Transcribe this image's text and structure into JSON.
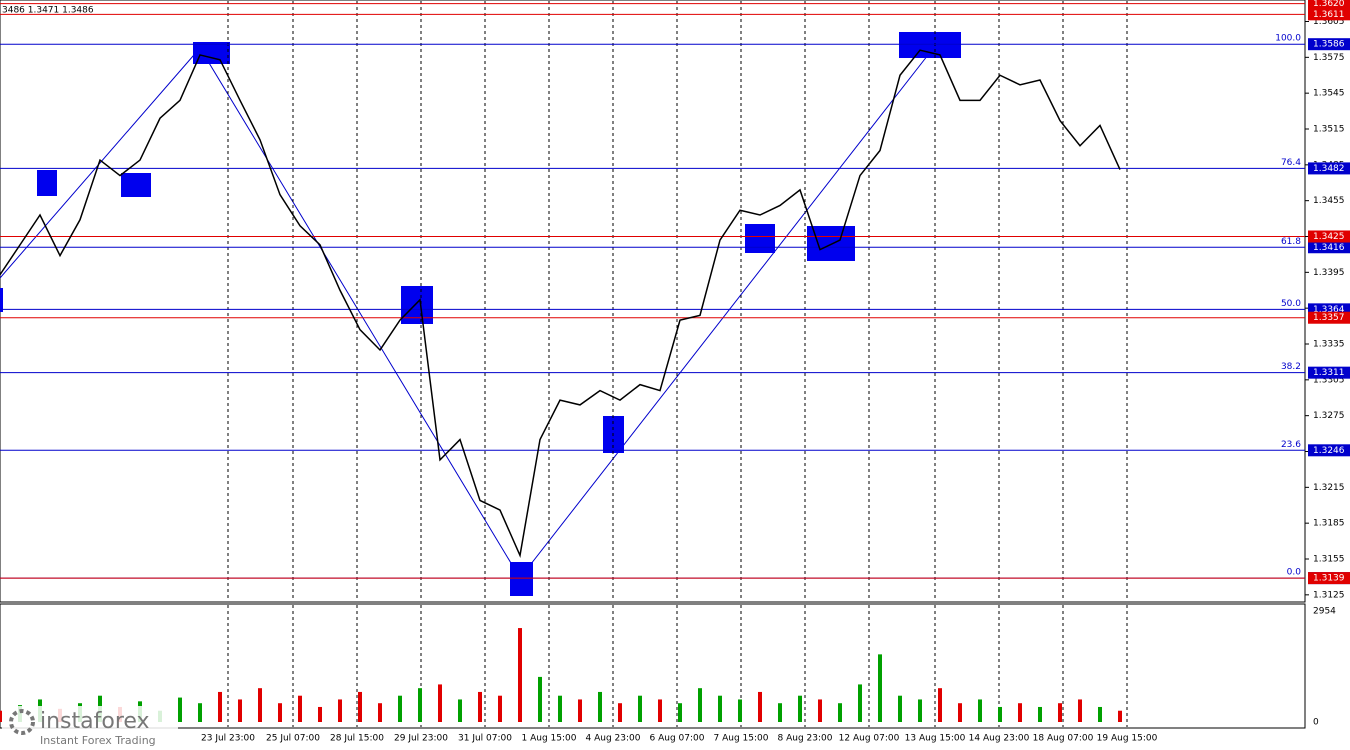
{
  "chart_data": {
    "type": "line",
    "header": "3486 1.3471 1.3486",
    "x": [
      0,
      1,
      2,
      3,
      4,
      5,
      6,
      7,
      8,
      9,
      10,
      11,
      12,
      13,
      14,
      15,
      16,
      17,
      18,
      19,
      20,
      21,
      22,
      23,
      24,
      25,
      26,
      27,
      28,
      29,
      30,
      31,
      32,
      33,
      34,
      35,
      36,
      37,
      38,
      39,
      40,
      41,
      42,
      43,
      44,
      45,
      46,
      47,
      48,
      49,
      50,
      51,
      52,
      53,
      54,
      55,
      56
    ],
    "values": [
      1.3393,
      1.3418,
      1.3443,
      1.3409,
      1.3439,
      1.3489,
      1.3476,
      1.3489,
      1.3524,
      1.3539,
      1.3577,
      1.3573,
      1.3539,
      1.3506,
      1.346,
      1.3434,
      1.3418,
      1.338,
      1.3347,
      1.333,
      1.3355,
      1.3372,
      1.3238,
      1.3255,
      1.3204,
      1.3196,
      1.3158,
      1.3255,
      1.3288,
      1.3284,
      1.3296,
      1.3288,
      1.3301,
      1.3296,
      1.3355,
      1.3359,
      1.3422,
      1.3447,
      1.3443,
      1.3451,
      1.3464,
      1.3414,
      1.3422,
      1.3476,
      1.3497,
      1.356,
      1.3581,
      1.3577,
      1.3539,
      1.3539,
      1.356,
      1.3552,
      1.3556,
      1.3522,
      1.3501,
      1.3518,
      1.3481
    ],
    "color": "#000000",
    "xlim": [
      0,
      65.25
    ],
    "xticks": [
      {
        "value": 11.4,
        "label": "23 Jul 23:00"
      },
      {
        "value": 14.65,
        "label": "25 Jul 07:00"
      },
      {
        "value": 17.85,
        "label": "28 Jul 15:00"
      },
      {
        "value": 21.05,
        "label": "29 Jul 23:00"
      },
      {
        "value": 24.25,
        "label": "31 Jul 07:00"
      },
      {
        "value": 27.45,
        "label": "1 Aug 15:00"
      },
      {
        "value": 30.65,
        "label": "4 Aug 23:00"
      },
      {
        "value": 33.85,
        "label": "6 Aug 07:00"
      },
      {
        "value": 37.05,
        "label": "7 Aug 15:00"
      },
      {
        "value": 40.25,
        "label": "8 Aug 23:00"
      },
      {
        "value": 43.45,
        "label": "12 Aug 07:00"
      },
      {
        "value": 46.75,
        "label": "13 Aug 15:00"
      },
      {
        "value": 49.95,
        "label": "14 Aug 23:00"
      },
      {
        "value": 53.15,
        "label": "18 Aug 07:00"
      },
      {
        "value": 56.35,
        "label": "19 Aug 15:00"
      }
    ],
    "ylim": [
      1.3119,
      1.3623
    ],
    "yticks": [
      1.3125,
      1.3155,
      1.3185,
      1.3215,
      1.3245,
      1.3275,
      1.3305,
      1.3335,
      1.3365,
      1.3395,
      1.3425,
      1.3455,
      1.3485,
      1.3515,
      1.3545,
      1.3575,
      1.3605
    ],
    "grid": true,
    "fib_levels": [
      {
        "value": 1.3586,
        "label": "100.0"
      },
      {
        "value": 1.3482,
        "label": "76.4"
      },
      {
        "value": 1.3416,
        "label": "61.8"
      },
      {
        "value": 1.3364,
        "label": "50.0"
      },
      {
        "value": 1.3311,
        "label": "38.2"
      },
      {
        "value": 1.3246,
        "label": "23.6"
      },
      {
        "value": 1.3139,
        "label": "0.0"
      }
    ],
    "fib_color": "#0000cc",
    "red_levels": [
      {
        "value": 1.362,
        "label": "1.3620"
      },
      {
        "value": 1.3611,
        "label": "1.3611"
      },
      {
        "value": 1.3425,
        "label": "1.3425"
      },
      {
        "value": 1.3357,
        "label": "1.3357"
      },
      {
        "value": 1.3139,
        "label": "1.3139"
      }
    ],
    "red_color": "#e00000",
    "volume": {
      "values": [
        300,
        450,
        600,
        350,
        500,
        700,
        400,
        550,
        300,
        650,
        500,
        800,
        600,
        900,
        500,
        700,
        400,
        600,
        800,
        500,
        700,
        900,
        1000,
        600,
        800,
        700,
        2500,
        1200,
        700,
        600,
        800,
        500,
        700,
        600,
        500,
        900,
        700,
        600,
        800,
        500,
        700,
        600,
        500,
        1000,
        1800,
        700,
        600,
        900,
        500,
        600,
        400,
        500,
        400,
        500,
        600,
        400,
        300
      ],
      "ylim": [
        0,
        2954
      ],
      "yticks": [
        0,
        2954
      ],
      "up_color": "#00a000",
      "down_color": "#e00000"
    },
    "watermark": {
      "brand": "instaforex",
      "tagline": "Instant Forex Trading"
    }
  }
}
